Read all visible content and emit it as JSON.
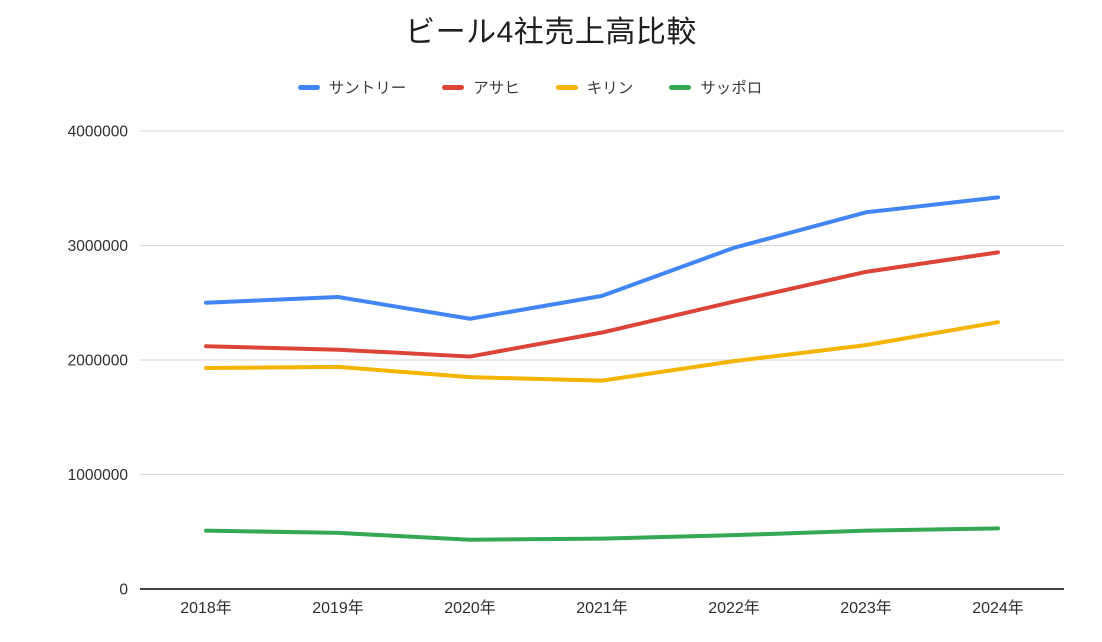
{
  "chart_data": {
    "type": "line",
    "title": "ビール4社売上高比較",
    "categories": [
      "2018年",
      "2019年",
      "2020年",
      "2021年",
      "2022年",
      "2023年",
      "2024年"
    ],
    "series": [
      {
        "key": "suntory",
        "name": "サントリー",
        "color": "#4285F4",
        "values": [
          2500000,
          2550000,
          2360000,
          2560000,
          2980000,
          3290000,
          3420000
        ]
      },
      {
        "key": "asahi",
        "name": "アサヒ",
        "color": "#DB4437",
        "values": [
          2120000,
          2090000,
          2030000,
          2240000,
          2510000,
          2770000,
          2940000
        ]
      },
      {
        "key": "kirin",
        "name": "キリン",
        "color": "#F4B400",
        "values": [
          1930000,
          1940000,
          1850000,
          1820000,
          1990000,
          2130000,
          2330000
        ]
      },
      {
        "key": "sapporo",
        "name": "サッポロ",
        "color": "#34A853",
        "values": [
          510000,
          490000,
          430000,
          440000,
          470000,
          510000,
          530000
        ]
      }
    ],
    "xlabel": "",
    "ylabel": "",
    "ylim": [
      0,
      4000000
    ],
    "yticks": [
      0,
      1000000,
      2000000,
      3000000,
      4000000
    ],
    "grid": true,
    "legend_position": "top",
    "colors": {
      "gridline": "#d9d9d9",
      "axis_line": "#424242",
      "tick_label": "#2f2f2f"
    }
  }
}
